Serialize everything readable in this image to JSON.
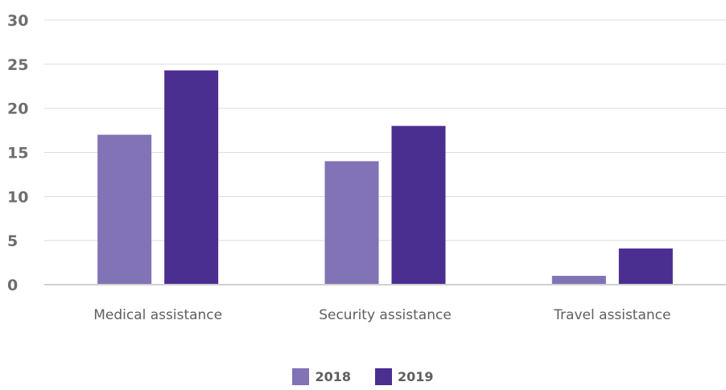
{
  "chart_data": {
    "type": "bar",
    "categories": [
      "Medical assistance",
      "Security assistance",
      "Travel assistance"
    ],
    "series": [
      {
        "name": "2018",
        "values": [
          17,
          14,
          1
        ],
        "color": "#8272b6"
      },
      {
        "name": "2019",
        "values": [
          24.3,
          18,
          4.1
        ],
        "color": "#4a2f90"
      }
    ],
    "ylim": [
      0,
      30
    ],
    "yticks": [
      0,
      5,
      10,
      15,
      20,
      25,
      30
    ],
    "grid": true,
    "legend_position": "bottom-center",
    "title": "",
    "xlabel": "",
    "ylabel": ""
  }
}
